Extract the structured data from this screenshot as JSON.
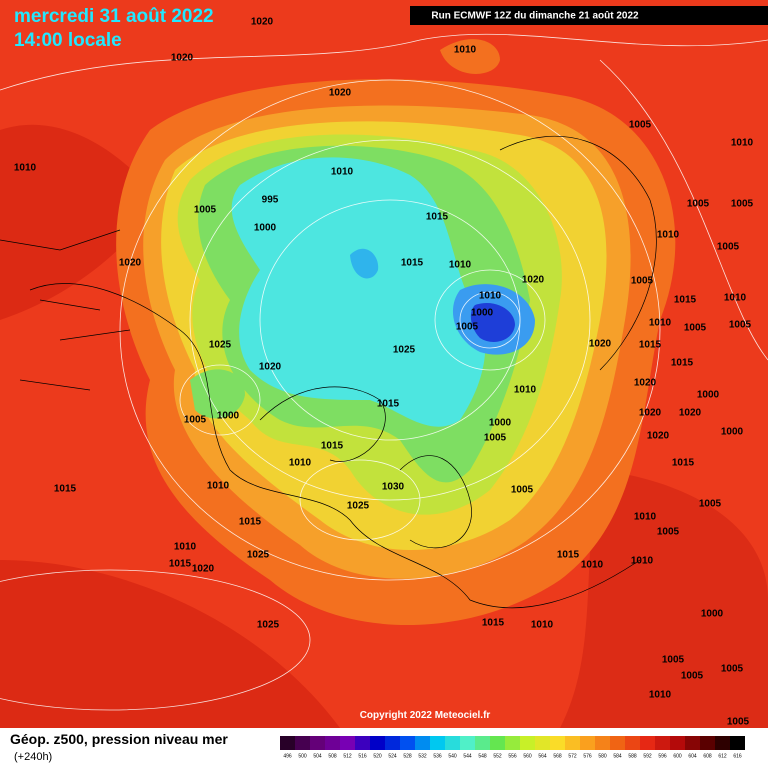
{
  "header": {
    "date": "mercredi 31 août 2022",
    "time": "14:00 locale",
    "run": "Run ECMWF 12Z du dimanche 21 août 2022"
  },
  "footer": {
    "title": "Géop. z500, pression niveau mer",
    "lead": "(+240h)",
    "copyright": "Copyright 2022 Meteociel.fr"
  },
  "legend": {
    "levels": [
      "496",
      "500",
      "504",
      "508",
      "512",
      "516",
      "520",
      "524",
      "528",
      "532",
      "536",
      "540",
      "544",
      "548",
      "552",
      "556",
      "560",
      "564",
      "568",
      "572",
      "576",
      "580",
      "584",
      "588",
      "592",
      "596",
      "600",
      "604",
      "608",
      "612",
      "616"
    ]
  },
  "isobar_labels": [
    "1020",
    "1020",
    "1010",
    "1020",
    "1010",
    "1005",
    "1010",
    "1010",
    "995",
    "1005",
    "1000",
    "1015",
    "1005",
    "1005",
    "1010",
    "1005",
    "1015",
    "1010",
    "1020",
    "1020",
    "1005",
    "1010",
    "1015",
    "1010",
    "1000",
    "1005",
    "1025",
    "1025",
    "1020",
    "1010",
    "1005",
    "1005",
    "1020",
    "1015",
    "1015",
    "1020",
    "1010",
    "1015",
    "1005",
    "1000",
    "1020",
    "1020",
    "1000",
    "1000",
    "1005",
    "1015",
    "1020",
    "1000",
    "1010",
    "1015",
    "1010",
    "1015",
    "1030",
    "1005",
    "1025",
    "1015",
    "1005",
    "1010",
    "1010",
    "1025",
    "1015",
    "1005",
    "1015",
    "1020",
    "1010",
    "1010",
    "1025",
    "1015",
    "1010",
    "1000",
    "1005",
    "1005",
    "1005",
    "1010",
    "1005"
  ]
}
